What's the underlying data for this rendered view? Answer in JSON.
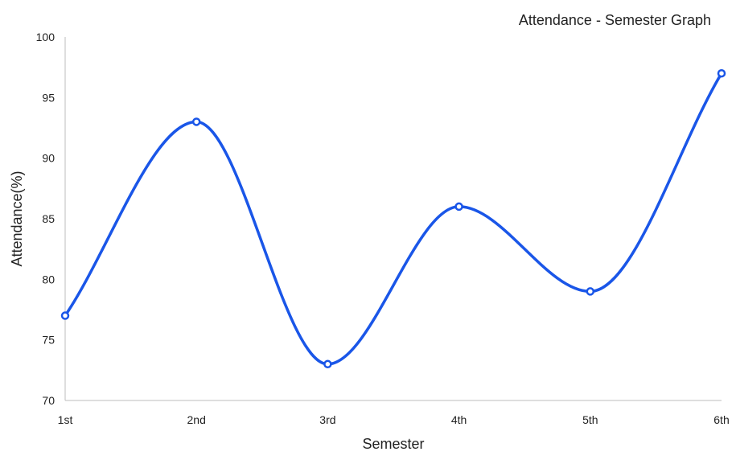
{
  "chart_data": {
    "type": "line",
    "title": "Attendance - Semester Graph",
    "xlabel": "Semester",
    "ylabel": "Attendance(%)",
    "categories": [
      "1st",
      "2nd",
      "3rd",
      "4th",
      "5th",
      "6th"
    ],
    "series": [
      {
        "values": [
          77,
          93,
          73,
          86,
          79,
          97
        ],
        "color": "#1a56e8"
      }
    ],
    "ylim": [
      70,
      100
    ],
    "yticks": [
      "70",
      "75",
      "80",
      "85",
      "90",
      "95",
      "100"
    ],
    "grid": false,
    "legend": "none",
    "curve": "smooth"
  }
}
